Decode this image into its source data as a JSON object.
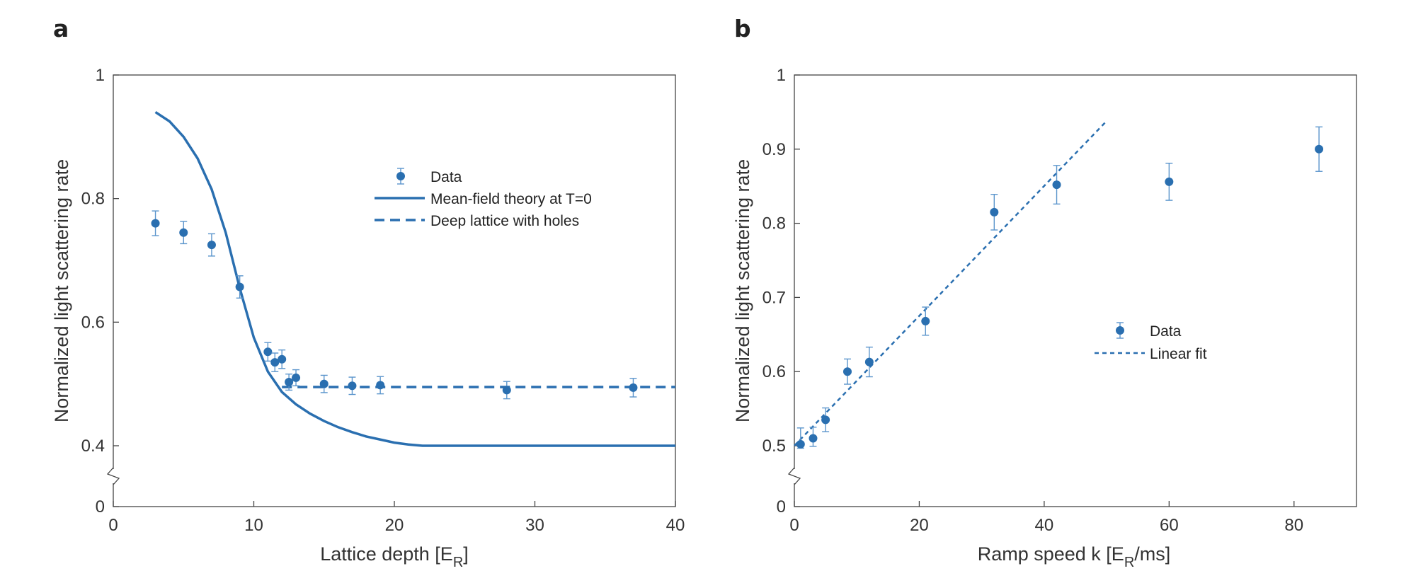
{
  "colors": {
    "data": "#2a6fb0",
    "errorbar": "#5b95cc",
    "axis": "#444444"
  },
  "chart_data": [
    {
      "panel_label": "a",
      "type": "scatter",
      "xlabel": "Lattice depth [E",
      "xlabel_sub": "R",
      "xlabel_end": "]",
      "ylabel": "Normalized light scattering rate",
      "xlim": [
        0,
        40
      ],
      "ylim": [
        0,
        1
      ],
      "y_axis_break": true,
      "xticks": [
        0,
        10,
        20,
        30,
        40
      ],
      "xtick_labels": [
        "0",
        "10",
        "20",
        "30",
        "40"
      ],
      "yticks": [
        0,
        0.4,
        0.6,
        0.8,
        1
      ],
      "ytick_labels": [
        "0",
        "0.4",
        "0.6",
        "0.8",
        "1"
      ],
      "grid": false,
      "legend_placement": "center-right",
      "legend": [
        "Data",
        "Mean-field theory at T=0",
        "Deep lattice with holes"
      ],
      "series": [
        {
          "name": "Data",
          "kind": "points_with_errorbars",
          "x": [
            3,
            5,
            7,
            9,
            11,
            11.5,
            12,
            12.5,
            13,
            15,
            17,
            19,
            28,
            37
          ],
          "y": [
            0.76,
            0.745,
            0.725,
            0.657,
            0.552,
            0.535,
            0.54,
            0.503,
            0.51,
            0.5,
            0.497,
            0.498,
            0.49,
            0.494
          ],
          "yerr": [
            0.02,
            0.018,
            0.018,
            0.018,
            0.015,
            0.015,
            0.015,
            0.013,
            0.013,
            0.014,
            0.014,
            0.014,
            0.014,
            0.015
          ]
        },
        {
          "name": "Mean-field theory at T=0",
          "kind": "solid_line",
          "x": [
            3,
            4,
            5,
            6,
            7,
            8,
            9,
            10,
            11,
            12,
            13,
            14,
            15,
            16,
            17,
            18,
            19,
            20,
            21,
            22,
            24,
            26,
            30,
            35,
            40
          ],
          "y": [
            0.94,
            0.925,
            0.9,
            0.865,
            0.815,
            0.745,
            0.655,
            0.575,
            0.52,
            0.487,
            0.467,
            0.452,
            0.44,
            0.43,
            0.422,
            0.415,
            0.41,
            0.405,
            0.402,
            0.4,
            0.4,
            0.4,
            0.4,
            0.4,
            0.4
          ]
        },
        {
          "name": "Deep lattice with holes",
          "kind": "dashed_line",
          "x": [
            12,
            40
          ],
          "y": [
            0.495,
            0.495
          ]
        }
      ]
    },
    {
      "panel_label": "b",
      "type": "scatter",
      "xlabel": "Ramp speed k [E",
      "xlabel_sub": "R",
      "xlabel_end": "/ms]",
      "ylabel": "Normalized light scattering rate",
      "xlim": [
        0,
        90
      ],
      "ylim": [
        0,
        1
      ],
      "y_axis_break": true,
      "xticks": [
        0,
        20,
        40,
        60,
        80
      ],
      "xtick_labels": [
        "0",
        "20",
        "40",
        "60",
        "80"
      ],
      "yticks": [
        0,
        0.5,
        0.6,
        0.7,
        0.8,
        0.9,
        1
      ],
      "ytick_labels": [
        "0",
        "0.5",
        "0.6",
        "0.7",
        "0.8",
        "0.9",
        "1"
      ],
      "grid": false,
      "legend_placement": "center-right",
      "legend": [
        "Data",
        "Linear fit"
      ],
      "series": [
        {
          "name": "Data",
          "kind": "points_with_errorbars",
          "x": [
            1,
            3,
            5,
            8.5,
            12,
            21,
            32,
            42,
            60,
            84
          ],
          "y": [
            0.502,
            0.51,
            0.535,
            0.6,
            0.613,
            0.668,
            0.815,
            0.852,
            0.856,
            0.9
          ],
          "yerr": [
            0.022,
            0.015,
            0.016,
            0.017,
            0.02,
            0.019,
            0.024,
            0.026,
            0.025,
            0.03
          ]
        },
        {
          "name": "Linear fit",
          "kind": "dotted_line",
          "x": [
            0,
            50
          ],
          "y": [
            0.5,
            0.938
          ]
        }
      ]
    }
  ]
}
